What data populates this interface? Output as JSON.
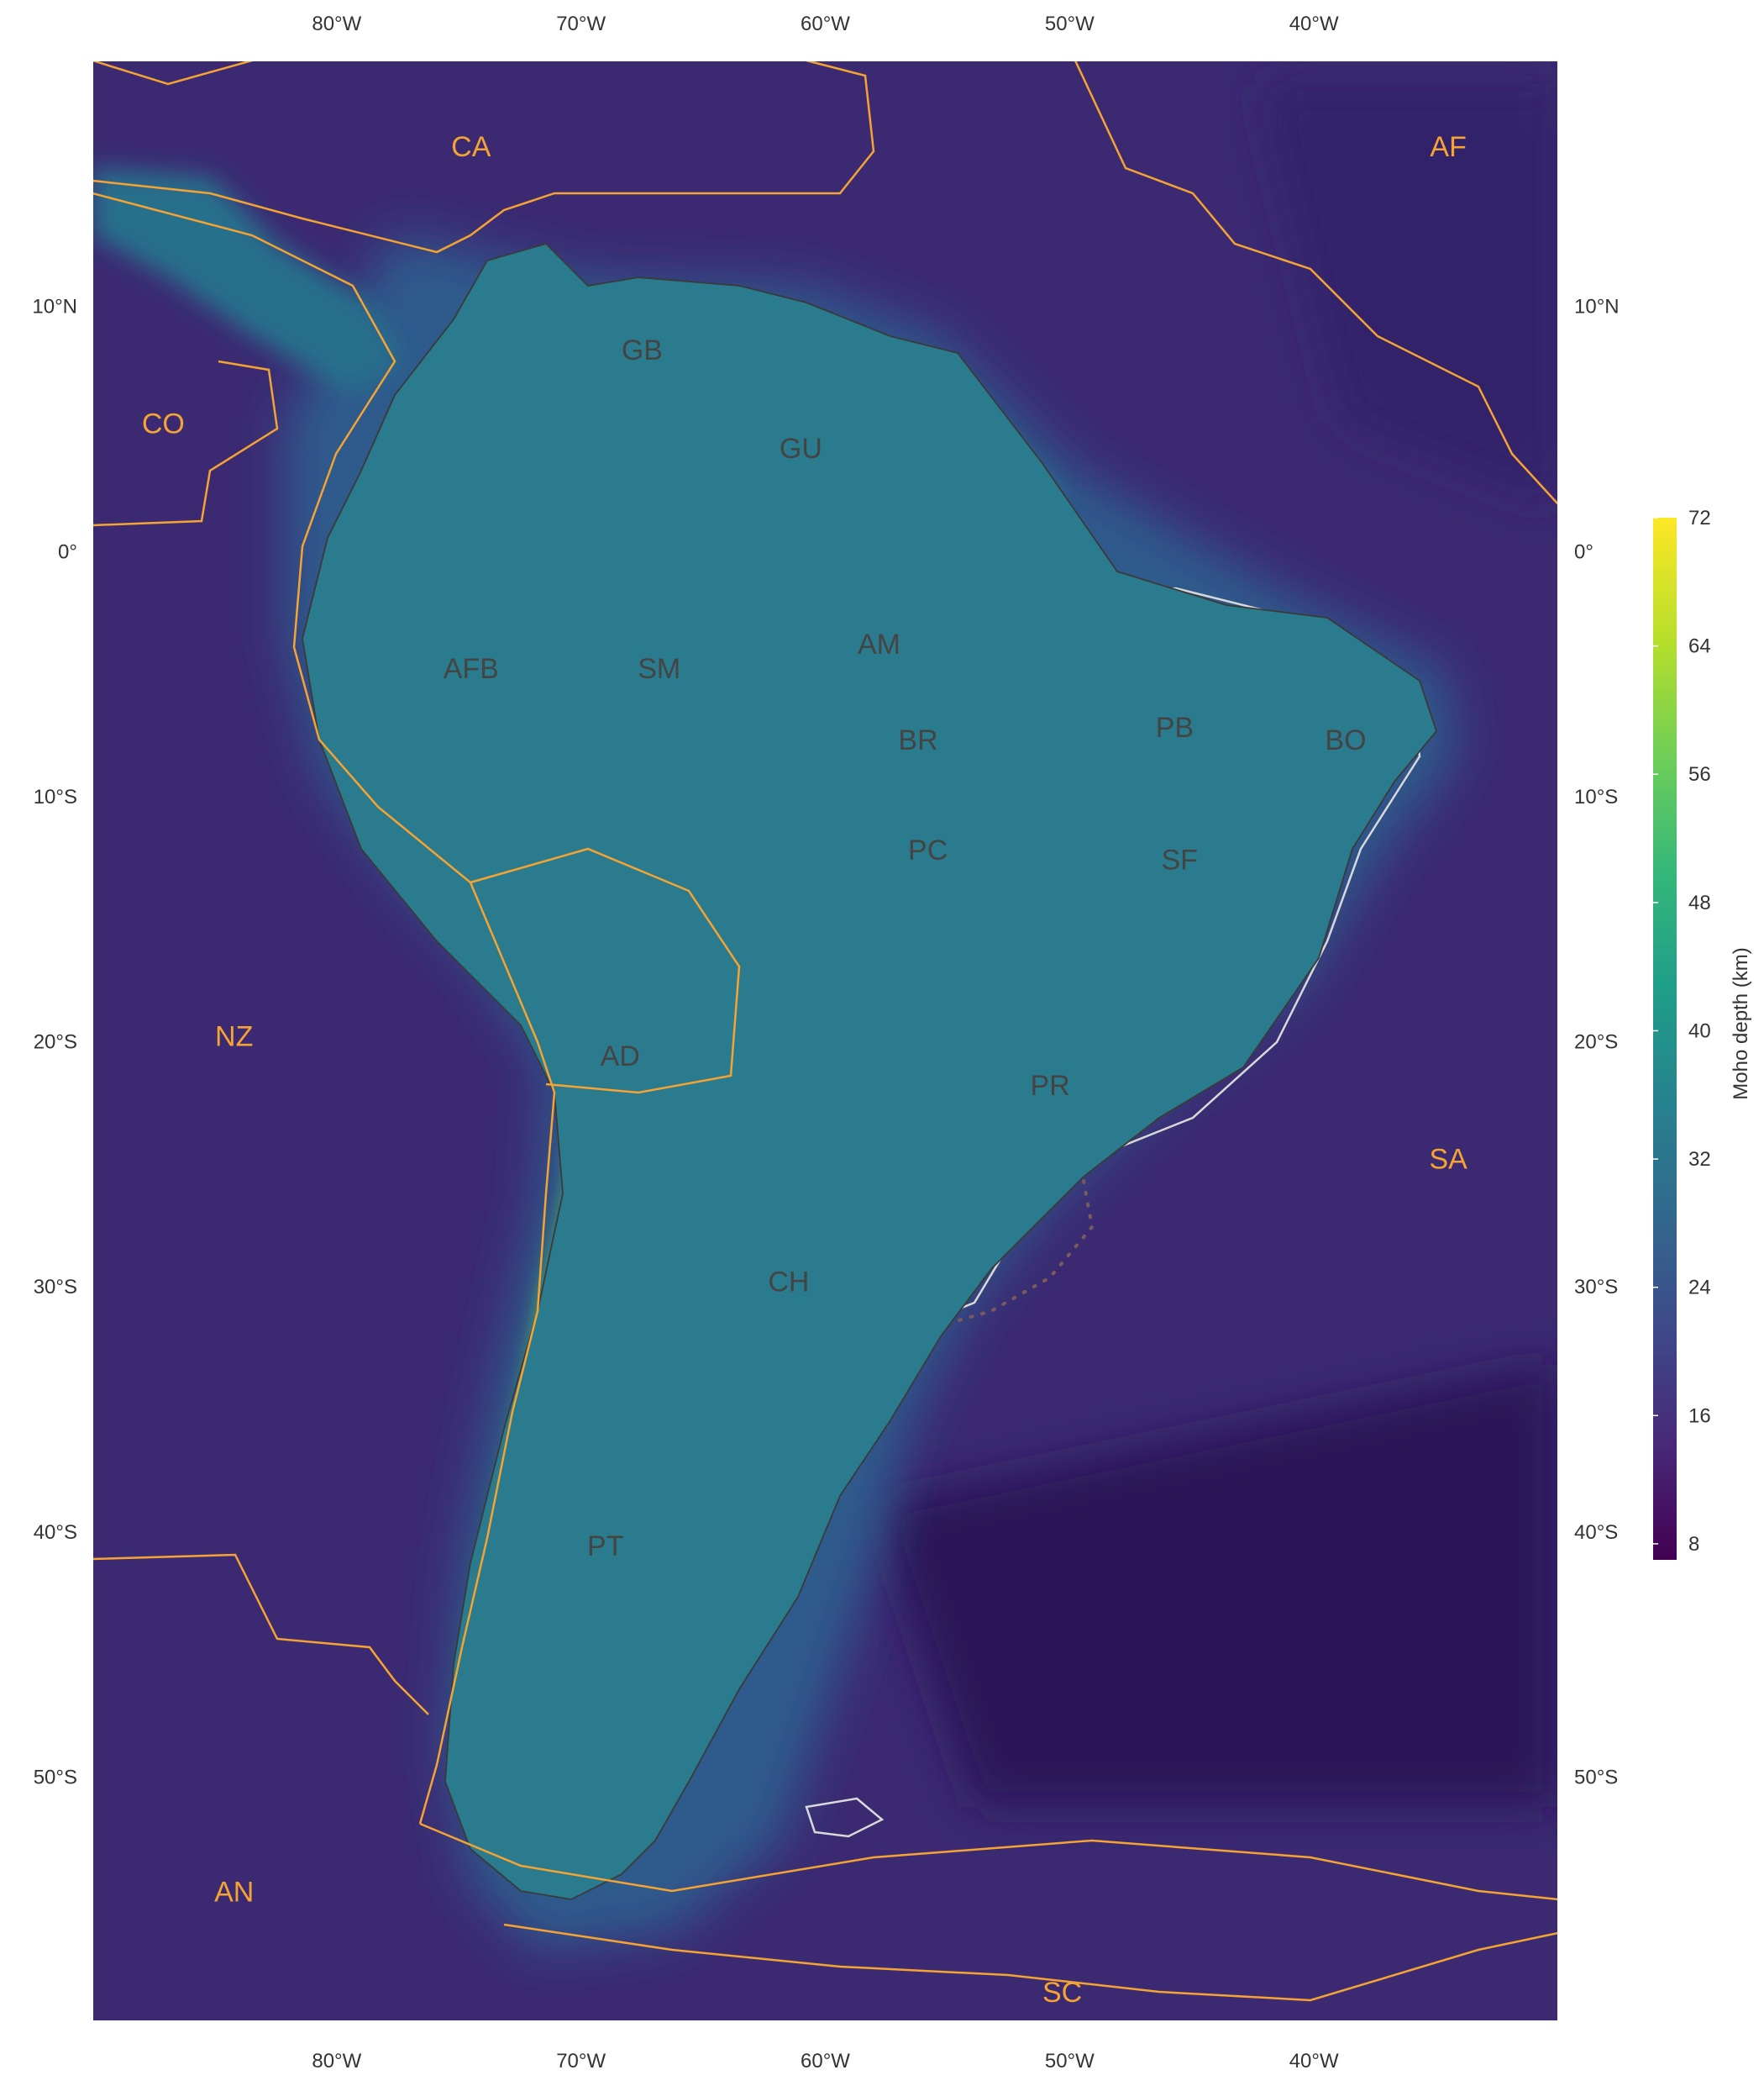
{
  "axes": {
    "lon_labels": [
      "80°W",
      "70°W",
      "60°W",
      "50°W",
      "40°W"
    ],
    "lon_values": [
      -80,
      -70,
      -60,
      -50,
      -40
    ],
    "lat_labels": [
      "10°N",
      "0°",
      "10°S",
      "20°S",
      "30°S",
      "40°S",
      "50°S"
    ],
    "lat_values": [
      10,
      0,
      -10,
      -20,
      -30,
      -40,
      -50
    ],
    "lon_range": [
      -90,
      -30
    ],
    "lat_range": [
      -60,
      20
    ]
  },
  "plates": [
    {
      "code": "CA",
      "lon": -74.5,
      "lat": 16.5
    },
    {
      "code": "AF",
      "lon": -34.5,
      "lat": 16.5
    },
    {
      "code": "CO",
      "lon": -87.1,
      "lat": 5.2
    },
    {
      "code": "NZ",
      "lon": -84.2,
      "lat": -19.8
    },
    {
      "code": "SA",
      "lon": -34.5,
      "lat": -24.8
    },
    {
      "code": "AN",
      "lon": -84.2,
      "lat": -54.7
    },
    {
      "code": "SC",
      "lon": -50.3,
      "lat": -58.8
    }
  ],
  "provinces": [
    {
      "code": "GB",
      "lon": -67.5,
      "lat": 8.2
    },
    {
      "code": "GU",
      "lon": -61.0,
      "lat": 4.2
    },
    {
      "code": "AFB",
      "lon": -74.5,
      "lat": -4.8
    },
    {
      "code": "SM",
      "lon": -66.8,
      "lat": -4.8
    },
    {
      "code": "AM",
      "lon": -57.8,
      "lat": -3.8
    },
    {
      "code": "BR",
      "lon": -56.2,
      "lat": -7.7
    },
    {
      "code": "PB",
      "lon": -45.7,
      "lat": -7.2
    },
    {
      "code": "BO",
      "lon": -38.7,
      "lat": -7.7
    },
    {
      "code": "PC",
      "lon": -55.8,
      "lat": -12.2
    },
    {
      "code": "SF",
      "lon": -45.5,
      "lat": -12.6
    },
    {
      "code": "AD",
      "lon": -68.4,
      "lat": -20.6
    },
    {
      "code": "PR",
      "lon": -50.8,
      "lat": -21.8
    },
    {
      "code": "CH",
      "lon": -61.5,
      "lat": -29.8
    },
    {
      "code": "PT",
      "lon": -69.0,
      "lat": -40.6
    }
  ],
  "colorbar": {
    "title": "Moho depth (km)",
    "ticks": [
      72,
      64,
      56,
      48,
      40,
      32,
      24,
      16,
      8
    ],
    "min": 7,
    "max": 72,
    "colors": [
      "#440154",
      "#482878",
      "#3e4989",
      "#31688e",
      "#26828e",
      "#1f9e89",
      "#35b779",
      "#6ece58",
      "#b5de2b",
      "#fde725"
    ]
  },
  "colors": {
    "ocean": "#3b2a72",
    "continent": "#2a7b8e",
    "plate_boundary": "#f5a332",
    "province_outline": "#d9d9d9",
    "province_dots": "#7a5a5a",
    "coastline": "#3a3a3a"
  }
}
